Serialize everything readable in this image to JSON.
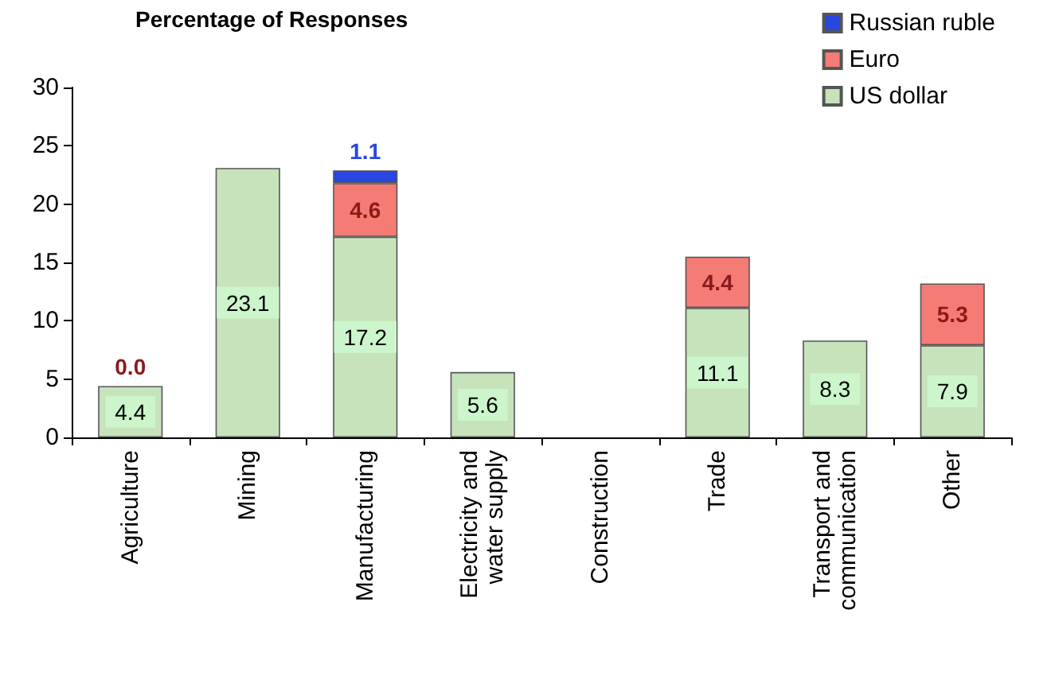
{
  "chart_data": {
    "type": "bar",
    "title": "Percentage of Responses",
    "stacked": true,
    "categories": [
      "Agriculture",
      "Mining",
      "Manufacturing",
      "Electricity and\nwater supply",
      "Construction",
      "Trade",
      "Transport and\ncommunication",
      "Other"
    ],
    "series": [
      {
        "name": "US dollar",
        "color": "#c6e3bc",
        "values": [
          4.4,
          23.1,
          17.2,
          5.6,
          null,
          11.1,
          8.3,
          7.9
        ],
        "value_labels": [
          "4.4",
          "23.1",
          "17.2",
          "5.6",
          null,
          "11.1",
          "8.3",
          "7.9"
        ]
      },
      {
        "name": "Euro",
        "color": "#f47c74",
        "values": [
          0.0,
          null,
          4.6,
          null,
          null,
          4.4,
          null,
          5.3
        ],
        "value_labels": [
          "0.0",
          null,
          "4.6",
          null,
          null,
          "4.4",
          null,
          "5.3"
        ]
      },
      {
        "name": "Russian ruble",
        "color": "#2846e0",
        "values": [
          null,
          null,
          1.1,
          null,
          null,
          null,
          null,
          null
        ],
        "value_labels": [
          null,
          null,
          "1.1",
          null,
          null,
          null,
          null,
          null
        ]
      }
    ],
    "ylim": [
      0,
      30
    ],
    "yticks": [
      0,
      5,
      10,
      15,
      20,
      25,
      30
    ],
    "grid": false,
    "legend": "top right"
  }
}
